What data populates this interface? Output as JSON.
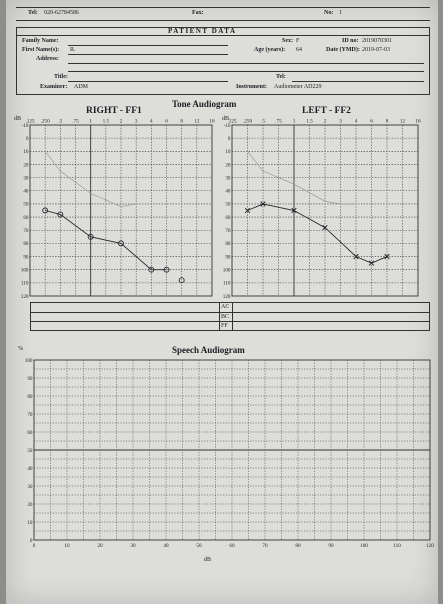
{
  "header": {
    "tel_label": "Tel:",
    "tel_value": "020-62784586",
    "fax_label": "Fax:",
    "no_label": "No:",
    "no_value": "1"
  },
  "patient": {
    "section_title": "PATIENT DATA",
    "family_name_label": "Family Name:",
    "first_name_label": "First Name(s):",
    "first_name_value": "R.",
    "address_label": "Address:",
    "sex_label": "Sex:",
    "sex_value": "F",
    "id_label": "ID no:",
    "id_value": "2019070301",
    "age_label": "Age (years):",
    "age_value": "64",
    "date_label": "Date (YMD):",
    "date_value": "2019-07-03",
    "title_label": "Title:",
    "tel_label": "Tel:",
    "examiner_label": "Examiner:",
    "examiner_value": "ADM",
    "instrument_label": "Instrument:",
    "instrument_value": "Audiometer AD229"
  },
  "tone": {
    "title": "Tone Audiogram",
    "right_title": "RIGHT - FF1",
    "left_title": "LEFT - FF2",
    "db_label": "dB",
    "row_labels": [
      "AC",
      "BC",
      "FF"
    ]
  },
  "speech": {
    "title": "Speech Audiogram",
    "percent_label": "%",
    "db_label": "dB"
  },
  "chart_data": [
    {
      "type": "line",
      "title": "RIGHT - FF1",
      "x_ticks": [
        ".125",
        ".250",
        ".5",
        ".75",
        "1",
        "1.5",
        "2",
        "3",
        "4",
        "6",
        "8",
        "12",
        "16"
      ],
      "y_ticks": [
        "-10",
        "0",
        "10",
        "20",
        "30",
        "40",
        "50",
        "60",
        "70",
        "80",
        "90",
        "100",
        "110",
        "120"
      ],
      "ylim": [
        -10,
        120
      ],
      "y_inverted": true,
      "series": [
        {
          "x": [
            ".250",
            ".5",
            "1",
            "2",
            "4",
            "6"
          ],
          "y": [
            55,
            58,
            75,
            80,
            100,
            100
          ],
          "marker": "circle"
        },
        {
          "x": [
            ".250",
            ".5",
            "1",
            "2",
            "3"
          ],
          "y": [
            10,
            25,
            42,
            52,
            50
          ],
          "marker": "none",
          "style": "faint"
        },
        {
          "x": [
            "8"
          ],
          "y": [
            108
          ],
          "marker": "circle"
        }
      ]
    },
    {
      "type": "line",
      "title": "LEFT - FF2",
      "x_ticks": [
        ".125",
        ".250",
        ".5",
        ".75",
        "1",
        "1.5",
        "2",
        "3",
        "4",
        "6",
        "8",
        "12",
        "16"
      ],
      "y_ticks": [
        "-10",
        "0",
        "10",
        "20",
        "30",
        "40",
        "50",
        "60",
        "70",
        "80",
        "90",
        "100",
        "110",
        "120"
      ],
      "ylim": [
        -10,
        120
      ],
      "y_inverted": true,
      "series": [
        {
          "x": [
            ".250",
            ".5",
            "1",
            "2",
            "4",
            "6",
            "8"
          ],
          "y": [
            55,
            50,
            55,
            68,
            90,
            95,
            90
          ],
          "marker": "cross"
        },
        {
          "x": [
            ".250",
            ".5",
            "1",
            "2",
            "3",
            "4"
          ],
          "y": [
            10,
            25,
            35,
            48,
            50,
            50
          ],
          "marker": "none",
          "style": "faint"
        }
      ]
    },
    {
      "type": "line",
      "title": "Speech Audiogram",
      "x_ticks": [
        "0",
        "10",
        "20",
        "30",
        "40",
        "50",
        "60",
        "70",
        "80",
        "90",
        "100",
        "110",
        "120"
      ],
      "y_ticks": [
        "0",
        "10",
        "20",
        "30",
        "40",
        "50",
        "60",
        "70",
        "80",
        "90",
        "100"
      ],
      "xlim": [
        0,
        120
      ],
      "ylim": [
        0,
        100
      ],
      "series": []
    }
  ]
}
